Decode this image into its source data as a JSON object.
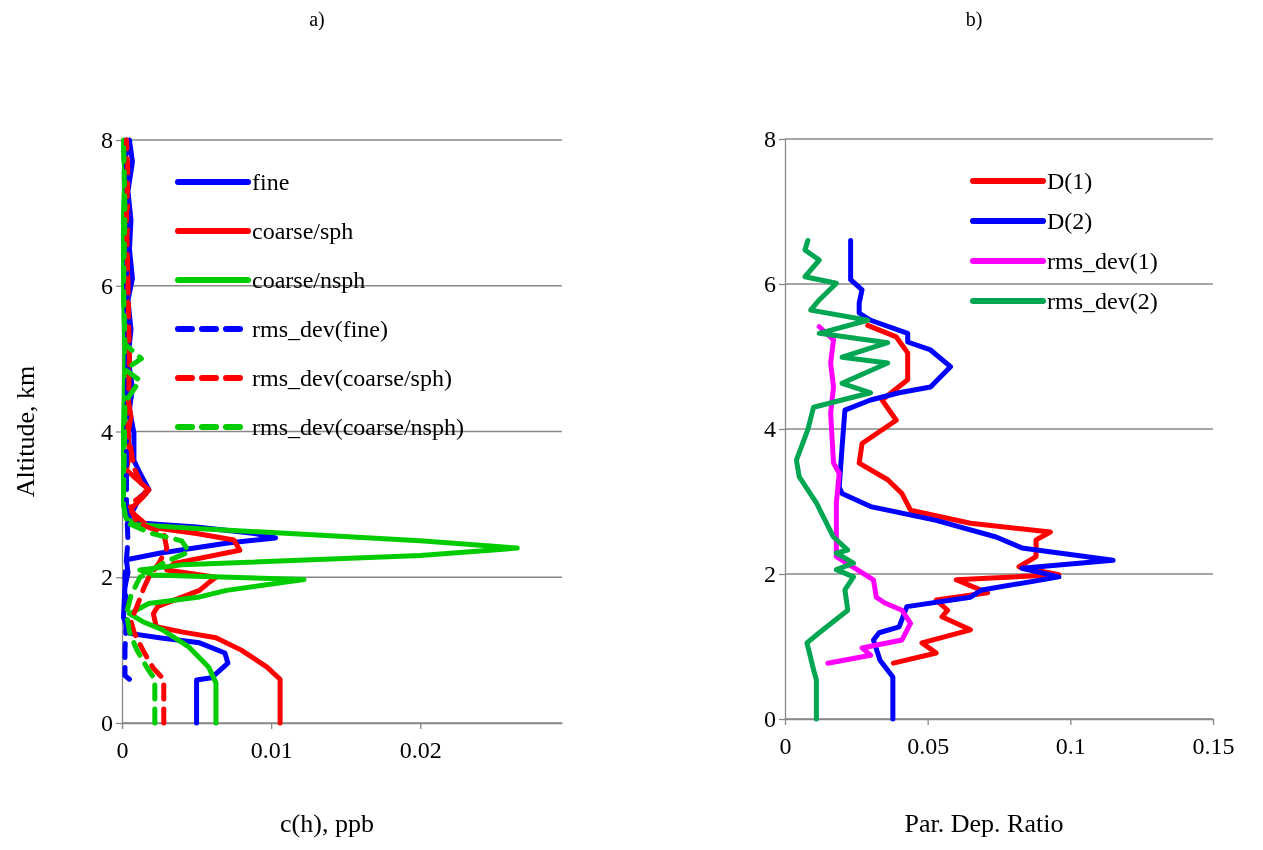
{
  "chart_data": [
    {
      "type": "line",
      "title": "a)",
      "xlabel": "c(h), ppb",
      "ylabel": "Altitude, km",
      "xlim": [
        0,
        0.0295
      ],
      "xticks": [
        0,
        0.01,
        0.02
      ],
      "ylim": [
        0,
        8
      ],
      "yticks": [
        0,
        2,
        4,
        6,
        8
      ],
      "grid": "y",
      "legend": "top",
      "series": [
        {
          "name": "fine",
          "color": "#0000ff",
          "line_style": "solid",
          "x": [
            0.005,
            0.005,
            0.006,
            0.0071,
            0.0069,
            0.0052,
            0.0025,
            0.0005,
            0.0001,
            0.0002,
            0.0004,
            0.0003,
            0.0025,
            0.0071,
            0.0103,
            0.0089,
            0.005,
            0.0014,
            0.0004,
            0.0012,
            0.0018,
            0.0012,
            0.0008,
            0.0008,
            0.0005,
            0.0007,
            0.0004,
            0.0006,
            0.0004,
            0.0007,
            0.0005,
            0.0006,
            0.0004,
            0.0007,
            0.0005
          ],
          "values": [
            0,
            0.59,
            0.62,
            0.82,
            0.96,
            1.1,
            1.17,
            1.23,
            1.45,
            1.87,
            2.06,
            2.24,
            2.33,
            2.47,
            2.54,
            2.6,
            2.69,
            2.74,
            2.78,
            3.1,
            3.2,
            3.43,
            3.6,
            3.98,
            4.3,
            4.6,
            5.0,
            5.4,
            5.8,
            6.1,
            6.5,
            6.9,
            7.3,
            7.7,
            8.0
          ]
        },
        {
          "name": "coarse/sph",
          "color": "#ff0000",
          "line_style": "solid",
          "x": [
            0.0106,
            0.0106,
            0.0097,
            0.008,
            0.0063,
            0.004,
            0.0023,
            0.0021,
            0.0024,
            0.0052,
            0.0059,
            0.0063,
            0.003,
            0.0035,
            0.0079,
            0.0075,
            0.005,
            0.0018,
            0.0005,
            0.0014,
            0.0018,
            0.0003,
            0.0005,
            0.0004,
            0.0006,
            0.0003,
            0.0005,
            0.0002,
            0.0004,
            0.0003,
            0.0004,
            0.0002,
            0.0003
          ],
          "values": [
            0,
            0.6,
            0.77,
            1.0,
            1.17,
            1.25,
            1.32,
            1.5,
            1.6,
            1.82,
            1.94,
            2.0,
            2.1,
            2.19,
            2.37,
            2.51,
            2.6,
            2.69,
            2.92,
            3.1,
            3.2,
            3.47,
            3.7,
            3.98,
            4.2,
            4.6,
            5.0,
            5.5,
            6.0,
            6.5,
            7.0,
            7.5,
            8.0
          ]
        },
        {
          "name": "coarse/nsph",
          "color": "#00cc00",
          "line_style": "solid",
          "x": [
            0.0063,
            0.0063,
            0.0058,
            0.0045,
            0.0027,
            0.0014,
            0.0005,
            0.0018,
            0.0052,
            0.007,
            0.0122,
            0.002,
            0.0012,
            0.004,
            0.02,
            0.0265,
            0.02,
            0.005,
            0.001,
            0.0003,
            0.0001,
            0.0001,
            0.0002,
            0.0001,
            0.0001,
            0.0002,
            0.0001
          ],
          "values": [
            0,
            0.55,
            0.77,
            1.04,
            1.28,
            1.39,
            1.5,
            1.64,
            1.73,
            1.82,
            1.97,
            2.03,
            2.1,
            2.17,
            2.3,
            2.4,
            2.5,
            2.67,
            2.72,
            2.8,
            3.0,
            4.0,
            5.0,
            6.0,
            7.0,
            7.5,
            8.0
          ]
        },
        {
          "name": "rms_dev(fine)",
          "color": "#0000ff",
          "line_style": "dashed",
          "x": [
            0.0005,
            0.0002,
            0.0002,
            0.0003,
            0.0002,
            0.0004,
            0.0003,
            0.0003,
            0.0004,
            0.0003,
            0.0004,
            0.0003,
            0.0003
          ],
          "values": [
            0.6,
            0.65,
            1.0,
            1.5,
            2.0,
            2.5,
            3.0,
            4.0,
            5.0,
            6.0,
            7.0,
            7.5,
            8.0
          ]
        },
        {
          "name": "rms_dev(coarse/sph)",
          "color": "#ff0000",
          "line_style": "dashed",
          "x": [
            0.0028,
            0.0028,
            0.0021,
            0.0014,
            0.0008,
            0.0006,
            0.001,
            0.0015,
            0.0018,
            0.0025,
            0.003,
            0.0028,
            0.001,
            0.0005,
            0.0016,
            0.0008,
            0.0004,
            0.0005,
            0.0004,
            0.0003,
            0.0004,
            0.0003
          ],
          "values": [
            0,
            0.6,
            0.75,
            1.0,
            1.25,
            1.4,
            1.6,
            1.87,
            2.0,
            2.2,
            2.4,
            2.6,
            2.75,
            3.0,
            3.15,
            3.5,
            4.0,
            5.0,
            6.0,
            7.0,
            7.5,
            8.0
          ]
        },
        {
          "name": "rms_dev(coarse/nsph)",
          "color": "#00cc00",
          "line_style": "dashed",
          "x": [
            0.0022,
            0.0022,
            0.0017,
            0.001,
            0.0005,
            0.0003,
            0.0006,
            0.0012,
            0.0028,
            0.0045,
            0.004,
            0.002,
            0.0003,
            0.0001,
            0.0002,
            0.0012,
            0.0002,
            0.0013,
            0.0002,
            0.0001,
            0.0002,
            0.0001
          ],
          "values": [
            0,
            0.6,
            0.75,
            1.0,
            1.25,
            1.5,
            1.75,
            2.0,
            2.2,
            2.35,
            2.5,
            2.6,
            2.75,
            3.0,
            4.4,
            4.7,
            4.85,
            5.0,
            5.2,
            6.0,
            7.0,
            8.0
          ]
        }
      ]
    },
    {
      "type": "line",
      "title": "b)",
      "xlabel": "Par. Dep. Ratio",
      "xlim": [
        0,
        0.15
      ],
      "xticks": [
        0,
        0.05,
        0.1,
        0.15
      ],
      "ylim": [
        0,
        8
      ],
      "yticks": [
        0,
        2,
        4,
        6,
        8
      ],
      "grid": "y",
      "legend": "top right",
      "series": [
        {
          "name": "D(1)",
          "color": "#ff0000",
          "line_style": "solid",
          "x": [
            0.038,
            0.053,
            0.048,
            0.065,
            0.055,
            0.057,
            0.053,
            0.071,
            0.06,
            0.096,
            0.082,
            0.088,
            0.088,
            0.093,
            0.065,
            0.044,
            0.041,
            0.036,
            0.026,
            0.027,
            0.039,
            0.034,
            0.043,
            0.043,
            0.039,
            0.029
          ],
          "values": [
            0.77,
            0.91,
            1.05,
            1.23,
            1.41,
            1.5,
            1.64,
            1.74,
            1.92,
            1.99,
            2.1,
            2.24,
            2.47,
            2.58,
            2.7,
            2.88,
            3.11,
            3.3,
            3.53,
            3.8,
            4.12,
            4.4,
            4.68,
            5.05,
            5.27,
            5.43
          ]
        },
        {
          "name": "D(2)",
          "color": "#0000ff",
          "line_style": "solid",
          "x": [
            0.0378,
            0.0378,
            0.0333,
            0.031,
            0.033,
            0.04,
            0.0427,
            0.065,
            0.069,
            0.096,
            0.083,
            0.115,
            0.083,
            0.074,
            0.053,
            0.03,
            0.02,
            0.019,
            0.02,
            0.021,
            0.03,
            0.04,
            0.051,
            0.058,
            0.051,
            0.043,
            0.043,
            0.03,
            0.026,
            0.026,
            0.027,
            0.023,
            0.023
          ],
          "values": [
            0,
            0.58,
            0.81,
            1.09,
            1.19,
            1.27,
            1.55,
            1.68,
            1.78,
            1.96,
            2.08,
            2.19,
            2.36,
            2.51,
            2.74,
            2.93,
            3.11,
            3.2,
            3.75,
            4.26,
            4.4,
            4.5,
            4.58,
            4.86,
            5.09,
            5.2,
            5.32,
            5.5,
            5.6,
            5.74,
            5.92,
            6.06,
            6.6
          ]
        },
        {
          "name": "rms_dev(1)",
          "color": "#ff00ff",
          "line_style": "solid",
          "x": [
            0.015,
            0.03,
            0.027,
            0.041,
            0.044,
            0.041,
            0.035,
            0.032,
            0.031,
            0.018,
            0.018,
            0.018,
            0.019,
            0.017,
            0.016,
            0.017,
            0.016,
            0.017,
            0.012
          ],
          "values": [
            0.77,
            0.88,
            0.98,
            1.09,
            1.32,
            1.5,
            1.6,
            1.68,
            1.92,
            2.24,
            2.51,
            2.98,
            3.39,
            3.53,
            4.22,
            4.58,
            4.91,
            5.23,
            5.41
          ]
        },
        {
          "name": "rms_dev(2)",
          "color": "#00a651",
          "line_style": "solid",
          "x": [
            0.011,
            0.011,
            0.01,
            0.0077,
            0.012,
            0.022,
            0.021,
            0.024,
            0.018,
            0.024,
            0.018,
            0.022,
            0.017,
            0.011,
            0.005,
            0.004,
            0.008,
            0.01,
            0.03,
            0.02,
            0.036,
            0.02,
            0.036,
            0.012,
            0.029,
            0.009,
            0.012,
            0.018,
            0.007,
            0.012,
            0.007,
            0.008
          ],
          "values": [
            0,
            0.54,
            0.68,
            1.05,
            1.19,
            1.5,
            1.78,
            1.96,
            2.06,
            2.15,
            2.29,
            2.33,
            2.51,
            2.98,
            3.34,
            3.57,
            3.99,
            4.3,
            4.5,
            4.63,
            4.91,
            4.99,
            5.19,
            5.32,
            5.5,
            5.64,
            5.78,
            6.01,
            6.1,
            6.33,
            6.47,
            6.6
          ]
        }
      ]
    }
  ]
}
